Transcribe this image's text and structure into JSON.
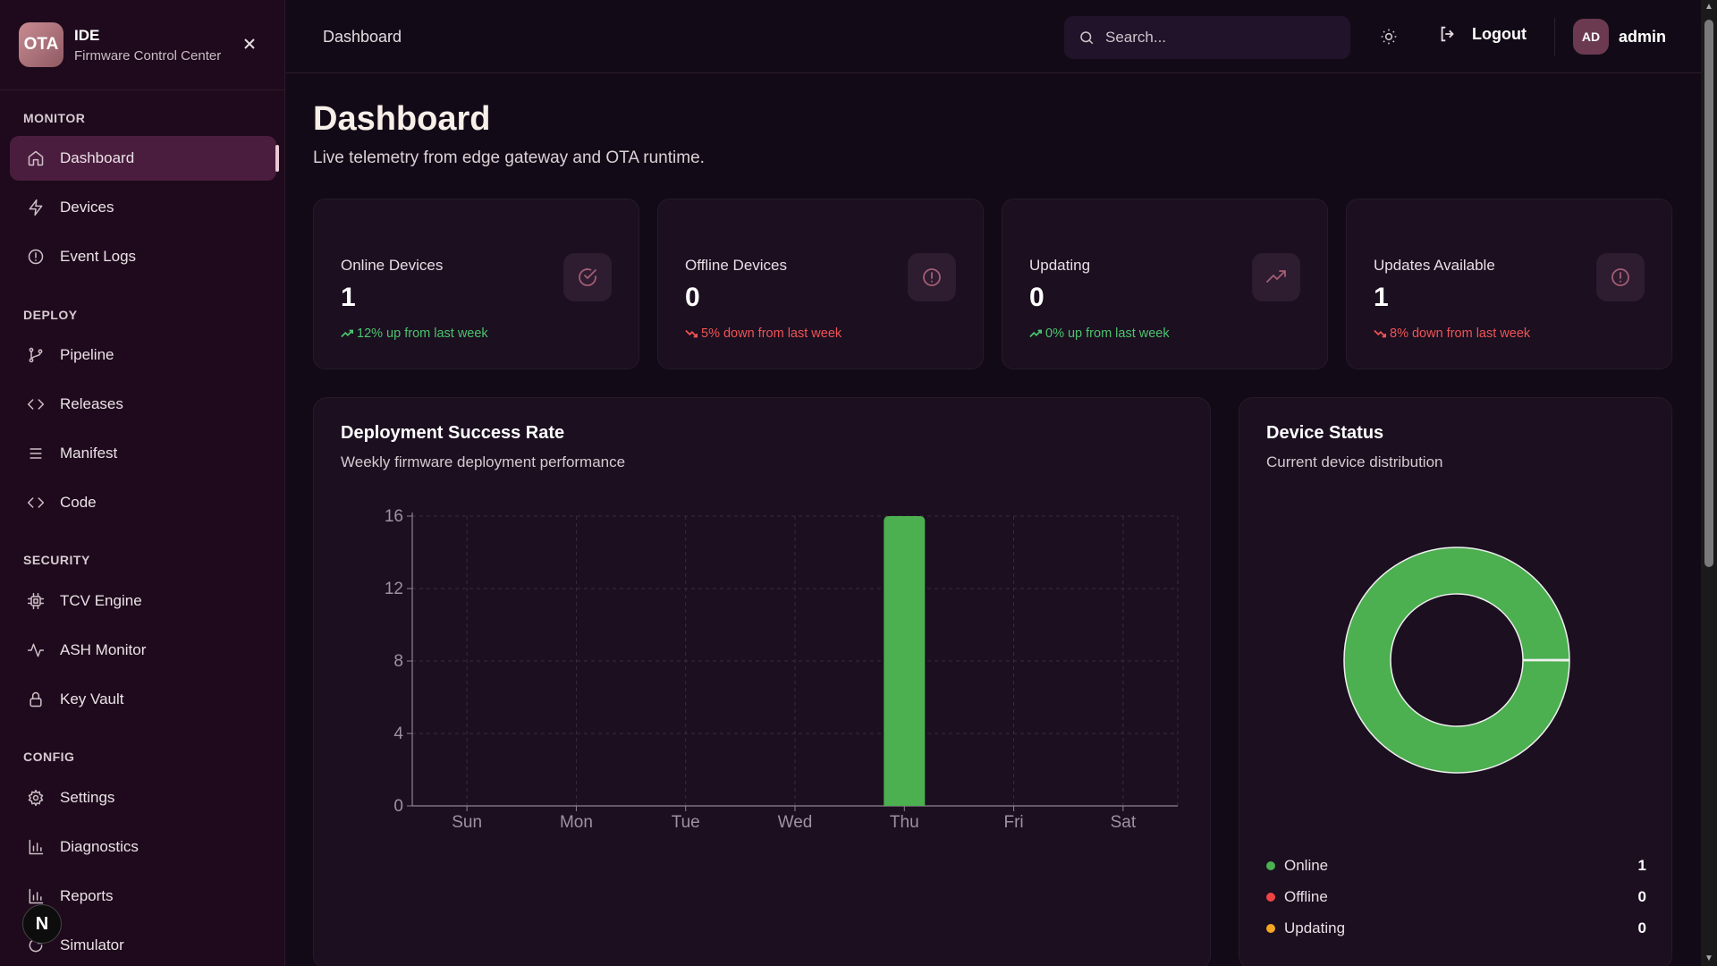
{
  "brand": {
    "logo": "OTA",
    "title": "IDE",
    "subtitle": "Firmware Control Center"
  },
  "sidebar": {
    "sections": [
      {
        "label": "MONITOR",
        "items": [
          {
            "label": "Dashboard",
            "icon": "home-icon",
            "active": true
          },
          {
            "label": "Devices",
            "icon": "bolt-icon"
          },
          {
            "label": "Event Logs",
            "icon": "alert-circle-icon"
          }
        ]
      },
      {
        "label": "DEPLOY",
        "items": [
          {
            "label": "Pipeline",
            "icon": "git-branch-icon"
          },
          {
            "label": "Releases",
            "icon": "code-icon"
          },
          {
            "label": "Manifest",
            "icon": "list-icon"
          },
          {
            "label": "Code",
            "icon": "code-icon"
          }
        ]
      },
      {
        "label": "SECURITY",
        "items": [
          {
            "label": "TCV Engine",
            "icon": "cpu-icon"
          },
          {
            "label": "ASH Monitor",
            "icon": "activity-icon"
          },
          {
            "label": "Key Vault",
            "icon": "lock-icon"
          }
        ]
      },
      {
        "label": "CONFIG",
        "items": [
          {
            "label": "Settings",
            "icon": "gear-icon"
          },
          {
            "label": "Diagnostics",
            "icon": "bar-chart-icon"
          },
          {
            "label": "Reports",
            "icon": "bar-chart-icon"
          },
          {
            "label": "Simulator",
            "icon": "refresh-icon"
          }
        ]
      }
    ],
    "floating_badge": "N"
  },
  "topbar": {
    "breadcrumb": "Dashboard",
    "search_placeholder": "Search...",
    "logout_label": "Logout",
    "avatar_initials": "AD",
    "username": "admin"
  },
  "main": {
    "title": "Dashboard",
    "subtitle": "Live telemetry from edge gateway and OTA runtime."
  },
  "stats": [
    {
      "label": "Online Devices",
      "value": "1",
      "trend": "12% up from last week",
      "direction": "up",
      "icon": "check-circle-icon"
    },
    {
      "label": "Offline Devices",
      "value": "0",
      "trend": "5% down from last week",
      "direction": "down",
      "icon": "alert-circle-icon"
    },
    {
      "label": "Updating",
      "value": "0",
      "trend": "0% up from last week",
      "direction": "up",
      "icon": "trending-up-icon"
    },
    {
      "label": "Updates Available",
      "value": "1",
      "trend": "8% down from last week",
      "direction": "down",
      "icon": "alert-circle-icon"
    }
  ],
  "deployment_panel": {
    "title": "Deployment Success Rate",
    "subtitle": "Weekly firmware deployment performance"
  },
  "status_panel": {
    "title": "Device Status",
    "subtitle": "Current device distribution",
    "legend": [
      {
        "label": "Online",
        "value": "1",
        "color": "#4caf50"
      },
      {
        "label": "Offline",
        "value": "0",
        "color": "#ef4444"
      },
      {
        "label": "Updating",
        "value": "0",
        "color": "#f5a623"
      }
    ]
  },
  "colors": {
    "accent": "#4caf50",
    "down": "#ef5454",
    "up": "#4cc36d"
  },
  "chart_data": [
    {
      "type": "bar",
      "categories": [
        "Sun",
        "Mon",
        "Tue",
        "Wed",
        "Thu",
        "Fri",
        "Sat"
      ],
      "values": [
        0,
        0,
        0,
        0,
        16,
        0,
        0
      ],
      "ylim": [
        0,
        16
      ],
      "yticks": [
        0,
        4,
        8,
        12,
        16
      ],
      "grid": true,
      "color": "#4caf50"
    },
    {
      "type": "pie",
      "donut": true,
      "labels": [
        "Online",
        "Offline",
        "Updating"
      ],
      "values": [
        1,
        0,
        0
      ],
      "colors": [
        "#4caf50",
        "#ef4444",
        "#f5a623"
      ]
    }
  ]
}
